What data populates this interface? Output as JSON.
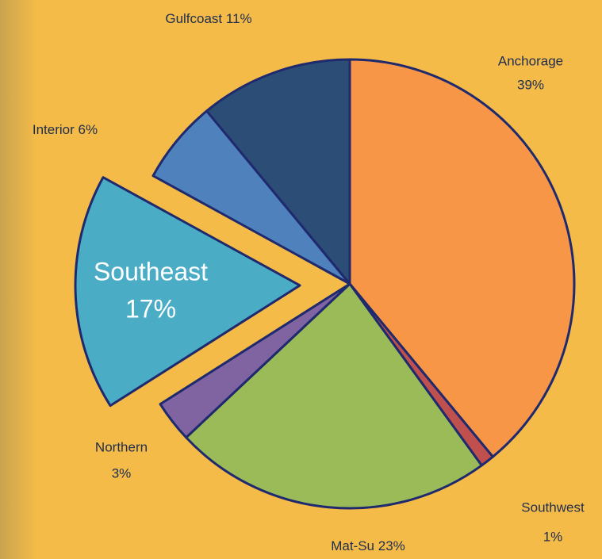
{
  "chart_data": {
    "type": "pie",
    "categories": [
      "Anchorage",
      "Southwest",
      "Mat-Su",
      "Northern",
      "Southeast",
      "Interior",
      "Gulfcoast"
    ],
    "values": [
      39,
      1,
      23,
      3,
      17,
      6,
      11
    ],
    "value_labels": [
      "39%",
      "1%",
      "23%",
      "3%",
      "17%",
      "6%",
      "11%"
    ],
    "colors": [
      "#f79646",
      "#c0504d",
      "#9bbb59",
      "#8064a2",
      "#4bacc6",
      "#4f81bd",
      "#2c4d75"
    ],
    "exploded": [
      "Southeast"
    ]
  }
}
